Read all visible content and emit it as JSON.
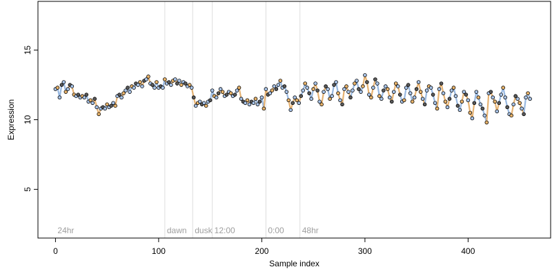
{
  "chart_data": {
    "type": "scatter",
    "xlabel": "Sample index",
    "ylabel": "Expression",
    "xlim": [
      -17,
      480
    ],
    "ylim": [
      1.5,
      18.5
    ],
    "x_ticks": [
      0,
      100,
      200,
      300,
      400
    ],
    "y_ticks": [
      5,
      10,
      15
    ],
    "phase_markers": [
      {
        "label": "24hr",
        "x": 0
      },
      {
        "label": "dawn",
        "x": 106
      },
      {
        "label": "dusk",
        "x": 133
      },
      {
        "label": "12:00",
        "x": 152
      },
      {
        "label": "0:00",
        "x": 204
      },
      {
        "label": "48hr",
        "x": 237
      }
    ],
    "colors": {
      "point_fill": "#a9c4e8",
      "point_fill_alt": "#e8b36a",
      "point_fill_dark": "#5a5a5a",
      "point_stroke": "#000000",
      "fit_line": "#7fa7d9",
      "fit_line_alt": "#e0a050",
      "phase_line": "#dddddd"
    },
    "series": [
      {
        "points": [
          [
            0,
            12.2
          ],
          [
            2,
            12.3
          ],
          [
            4,
            11.6
          ],
          [
            6,
            12.5
          ],
          [
            8,
            12.7
          ],
          [
            10,
            12.0
          ],
          [
            12,
            12.2
          ],
          [
            14,
            12.5
          ],
          [
            16,
            12.4
          ],
          [
            18,
            11.8
          ],
          [
            20,
            11.7
          ],
          [
            22,
            11.8
          ],
          [
            24,
            11.6
          ],
          [
            26,
            11.7
          ],
          [
            28,
            11.6
          ],
          [
            30,
            11.8
          ],
          [
            32,
            11.3
          ],
          [
            34,
            11.4
          ],
          [
            36,
            11.2
          ],
          [
            38,
            11.5
          ],
          [
            40,
            10.9
          ],
          [
            42,
            10.4
          ],
          [
            44,
            10.8
          ],
          [
            46,
            10.9
          ],
          [
            48,
            10.8
          ],
          [
            50,
            11.1
          ],
          [
            52,
            10.9
          ],
          [
            54,
            11.0
          ],
          [
            56,
            11.2
          ],
          [
            58,
            11.0
          ],
          [
            60,
            11.7
          ],
          [
            62,
            11.8
          ],
          [
            64,
            11.6
          ],
          [
            66,
            11.9
          ],
          [
            68,
            12.1
          ],
          [
            70,
            12.3
          ],
          [
            72,
            12.0
          ],
          [
            74,
            12.4
          ],
          [
            76,
            12.3
          ],
          [
            78,
            12.6
          ],
          [
            80,
            12.5
          ],
          [
            82,
            12.7
          ],
          [
            84,
            12.4
          ],
          [
            86,
            12.8
          ],
          [
            88,
            12.9
          ],
          [
            90,
            13.1
          ],
          [
            92,
            12.6
          ],
          [
            94,
            12.5
          ],
          [
            96,
            12.3
          ],
          [
            98,
            12.7
          ],
          [
            100,
            12.3
          ],
          [
            102,
            12.4
          ],
          [
            104,
            12.3
          ],
          [
            106,
            12.9
          ],
          [
            108,
            12.6
          ],
          [
            110,
            12.7
          ],
          [
            112,
            12.5
          ],
          [
            114,
            12.8
          ],
          [
            116,
            12.9
          ],
          [
            118,
            12.6
          ],
          [
            120,
            12.8
          ],
          [
            122,
            12.5
          ],
          [
            124,
            12.7
          ],
          [
            126,
            12.6
          ],
          [
            128,
            12.4
          ],
          [
            130,
            12.5
          ],
          [
            132,
            12.3
          ],
          [
            134,
            11.6
          ],
          [
            136,
            11.0
          ],
          [
            138,
            11.2
          ],
          [
            140,
            11.3
          ],
          [
            142,
            11.1
          ],
          [
            144,
            11.2
          ],
          [
            146,
            11.0
          ],
          [
            148,
            11.3
          ],
          [
            150,
            11.4
          ],
          [
            152,
            12.1
          ],
          [
            154,
            11.7
          ],
          [
            156,
            11.6
          ],
          [
            158,
            11.9
          ],
          [
            160,
            12.2
          ],
          [
            162,
            12.0
          ],
          [
            164,
            11.7
          ],
          [
            166,
            11.8
          ],
          [
            168,
            12.0
          ],
          [
            170,
            11.9
          ],
          [
            172,
            11.7
          ],
          [
            174,
            11.8
          ],
          [
            176,
            12.1
          ],
          [
            178,
            12.3
          ],
          [
            180,
            11.5
          ],
          [
            182,
            11.3
          ],
          [
            184,
            11.2
          ],
          [
            186,
            11.4
          ],
          [
            188,
            11.1
          ],
          [
            190,
            11.3
          ],
          [
            192,
            11.2
          ],
          [
            194,
            11.5
          ],
          [
            196,
            11.1
          ],
          [
            198,
            11.3
          ],
          [
            200,
            11.6
          ],
          [
            202,
            10.8
          ],
          [
            204,
            12.2
          ],
          [
            206,
            11.8
          ],
          [
            208,
            11.9
          ],
          [
            210,
            12.1
          ],
          [
            212,
            12.4
          ],
          [
            214,
            12.2
          ],
          [
            216,
            12.5
          ],
          [
            218,
            12.8
          ],
          [
            220,
            12.3
          ],
          [
            222,
            12.4
          ],
          [
            224,
            12.0
          ],
          [
            226,
            11.4
          ],
          [
            228,
            10.7
          ],
          [
            230,
            11.2
          ],
          [
            232,
            11.6
          ],
          [
            234,
            11.4
          ],
          [
            236,
            11.2
          ],
          [
            238,
            11.7
          ],
          [
            240,
            12.1
          ],
          [
            242,
            12.6
          ],
          [
            244,
            12.3
          ],
          [
            246,
            11.9
          ],
          [
            248,
            11.5
          ],
          [
            250,
            12.2
          ],
          [
            252,
            12.6
          ],
          [
            254,
            12.1
          ],
          [
            256,
            11.3
          ],
          [
            258,
            11.1
          ],
          [
            260,
            12.0
          ],
          [
            262,
            12.4
          ],
          [
            264,
            12.2
          ],
          [
            266,
            11.5
          ],
          [
            268,
            11.7
          ],
          [
            270,
            12.5
          ],
          [
            272,
            12.7
          ],
          [
            274,
            11.9
          ],
          [
            276,
            11.4
          ],
          [
            278,
            11.1
          ],
          [
            280,
            12.2
          ],
          [
            282,
            12.4
          ],
          [
            284,
            12.0
          ],
          [
            286,
            11.6
          ],
          [
            288,
            12.1
          ],
          [
            290,
            12.6
          ],
          [
            292,
            12.8
          ],
          [
            294,
            12.2
          ],
          [
            296,
            12.0
          ],
          [
            298,
            12.4
          ],
          [
            300,
            13.2
          ],
          [
            302,
            12.7
          ],
          [
            304,
            11.8
          ],
          [
            306,
            11.6
          ],
          [
            308,
            12.3
          ],
          [
            310,
            12.9
          ],
          [
            312,
            12.6
          ],
          [
            314,
            11.7
          ],
          [
            316,
            11.5
          ],
          [
            318,
            12.1
          ],
          [
            320,
            12.4
          ],
          [
            322,
            12.2
          ],
          [
            324,
            11.6
          ],
          [
            326,
            11.3
          ],
          [
            328,
            12.0
          ],
          [
            330,
            12.6
          ],
          [
            332,
            12.4
          ],
          [
            334,
            11.8
          ],
          [
            336,
            11.3
          ],
          [
            338,
            11.4
          ],
          [
            340,
            12.3
          ],
          [
            342,
            12.5
          ],
          [
            344,
            11.9
          ],
          [
            346,
            11.3
          ],
          [
            348,
            11.6
          ],
          [
            350,
            12.2
          ],
          [
            352,
            12.7
          ],
          [
            354,
            12.0
          ],
          [
            356,
            11.5
          ],
          [
            358,
            11.1
          ],
          [
            360,
            12.1
          ],
          [
            362,
            12.4
          ],
          [
            364,
            12.3
          ],
          [
            366,
            11.8
          ],
          [
            368,
            11.2
          ],
          [
            370,
            10.8
          ],
          [
            372,
            12.2
          ],
          [
            374,
            12.6
          ],
          [
            376,
            11.9
          ],
          [
            378,
            11.3
          ],
          [
            380,
            10.9
          ],
          [
            382,
            11.5
          ],
          [
            384,
            12.1
          ],
          [
            386,
            12.3
          ],
          [
            388,
            11.7
          ],
          [
            390,
            11.0
          ],
          [
            392,
            10.7
          ],
          [
            394,
            11.3
          ],
          [
            396,
            12.0
          ],
          [
            398,
            11.8
          ],
          [
            400,
            11.4
          ],
          [
            402,
            10.5
          ],
          [
            404,
            10.1
          ],
          [
            406,
            11.2
          ],
          [
            408,
            12.0
          ],
          [
            410,
            11.6
          ],
          [
            412,
            11.1
          ],
          [
            414,
            10.8
          ],
          [
            416,
            10.3
          ],
          [
            418,
            9.8
          ],
          [
            420,
            11.9
          ],
          [
            422,
            12.0
          ],
          [
            424,
            11.6
          ],
          [
            426,
            11.3
          ],
          [
            428,
            10.6
          ],
          [
            430,
            11.2
          ],
          [
            432,
            11.8
          ],
          [
            434,
            12.3
          ],
          [
            436,
            11.6
          ],
          [
            438,
            10.9
          ],
          [
            440,
            10.4
          ],
          [
            442,
            10.3
          ],
          [
            444,
            11.1
          ],
          [
            446,
            11.7
          ],
          [
            448,
            11.5
          ],
          [
            450,
            11.2
          ],
          [
            452,
            10.8
          ],
          [
            454,
            10.4
          ],
          [
            456,
            11.6
          ],
          [
            458,
            11.9
          ],
          [
            460,
            11.5
          ]
        ]
      }
    ]
  }
}
